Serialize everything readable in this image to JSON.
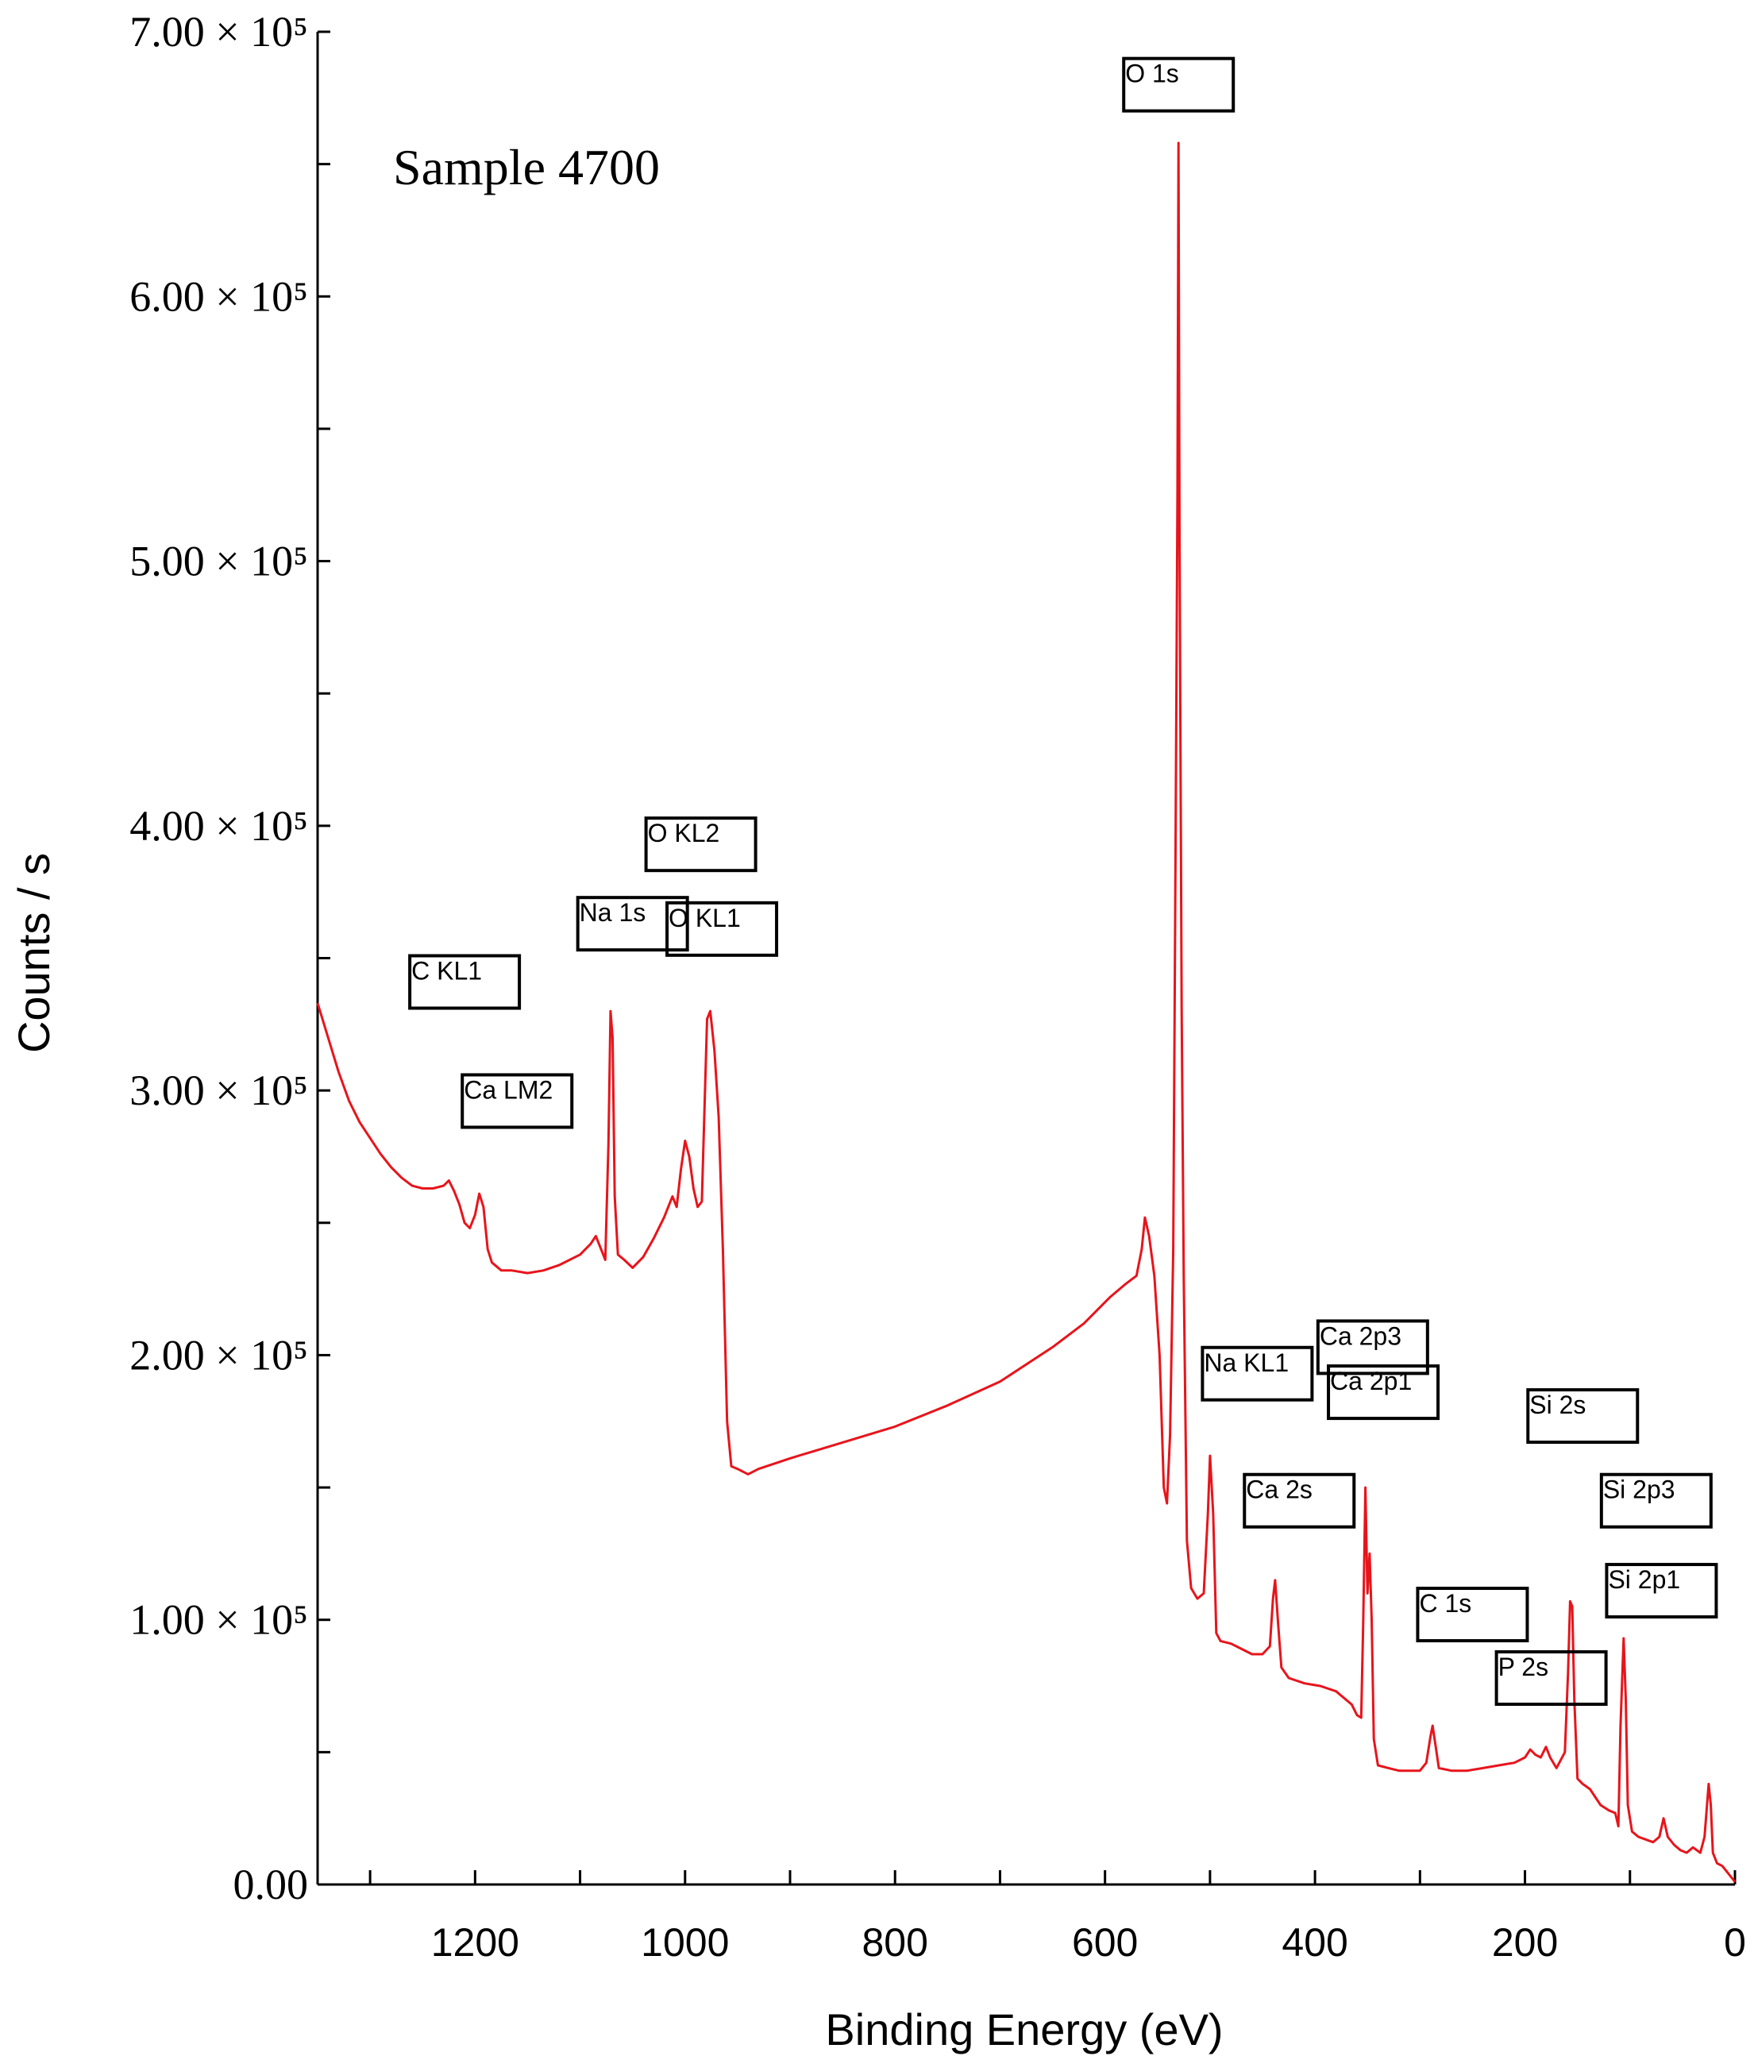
{
  "chart_data": {
    "type": "line",
    "sample_label": "Sample 4700",
    "xlabel": "Binding Energy (eV)",
    "ylabel": "Counts / s",
    "xlim": [
      1350,
      0
    ],
    "ylim": [
      0,
      700000
    ],
    "x_reversed": true,
    "x_ticks": [
      {
        "value": 1200,
        "label": "1200"
      },
      {
        "value": 1000,
        "label": "1000"
      },
      {
        "value": 800,
        "label": "800"
      },
      {
        "value": 600,
        "label": "600"
      },
      {
        "value": 400,
        "label": "400"
      },
      {
        "value": 200,
        "label": "200"
      },
      {
        "value": 0,
        "label": "0"
      }
    ],
    "x_minor_ticks": [
      1300,
      1100,
      900,
      700,
      500,
      300,
      100
    ],
    "y_ticks": [
      {
        "value": 0,
        "label": "0.00"
      },
      {
        "value": 100000,
        "label": "1.00 × 10⁵"
      },
      {
        "value": 200000,
        "label": "2.00 × 10⁵"
      },
      {
        "value": 300000,
        "label": "3.00 × 10⁵"
      },
      {
        "value": 400000,
        "label": "4.00 × 10⁵"
      },
      {
        "value": 500000,
        "label": "5.00 × 10⁵"
      },
      {
        "value": 600000,
        "label": "6.00 × 10⁵"
      },
      {
        "value": 700000,
        "label": "7.00 × 10⁵"
      }
    ],
    "y_minor_ticks": [
      50000,
      150000,
      250000,
      350000,
      450000,
      550000,
      650000
    ],
    "color": "#e8141b",
    "peak_labels": [
      {
        "label": "O 1s",
        "x": 530,
        "y": 680000
      },
      {
        "label": "O KL2",
        "x": 985,
        "y": 393000
      },
      {
        "label": "Na 1s",
        "x": 1050,
        "y": 363000
      },
      {
        "label": "O KL1",
        "x": 965,
        "y": 361000
      },
      {
        "label": "C KL1",
        "x": 1210,
        "y": 341000
      },
      {
        "label": "Ca LM2",
        "x": 1160,
        "y": 296000
      },
      {
        "label": "Ca 2p3",
        "x": 345,
        "y": 203000
      },
      {
        "label": "Na KL1",
        "x": 455,
        "y": 193000
      },
      {
        "label": "Ca 2p1",
        "x": 335,
        "y": 186000
      },
      {
        "label": "Si 2s",
        "x": 145,
        "y": 177000
      },
      {
        "label": "Ca 2s",
        "x": 415,
        "y": 145000
      },
      {
        "label": "Si 2p3",
        "x": 75,
        "y": 145000
      },
      {
        "label": "Si 2p1",
        "x": 70,
        "y": 111000
      },
      {
        "label": "C 1s",
        "x": 250,
        "y": 102000
      },
      {
        "label": "P 2s",
        "x": 175,
        "y": 78000
      }
    ],
    "series": [
      {
        "points": [
          [
            1350,
            333000
          ],
          [
            1340,
            320000
          ],
          [
            1330,
            307000
          ],
          [
            1320,
            296000
          ],
          [
            1310,
            288000
          ],
          [
            1300,
            282000
          ],
          [
            1290,
            276000
          ],
          [
            1280,
            271000
          ],
          [
            1270,
            267000
          ],
          [
            1260,
            264000
          ],
          [
            1250,
            263000
          ],
          [
            1240,
            263000
          ],
          [
            1230,
            264000
          ],
          [
            1225,
            266000
          ],
          [
            1220,
            262000
          ],
          [
            1215,
            257000
          ],
          [
            1210,
            250000
          ],
          [
            1205,
            248000
          ],
          [
            1200,
            253000
          ],
          [
            1196,
            261000
          ],
          [
            1192,
            256000
          ],
          [
            1188,
            240000
          ],
          [
            1184,
            235000
          ],
          [
            1175,
            232000
          ],
          [
            1165,
            232000
          ],
          [
            1150,
            231000
          ],
          [
            1135,
            232000
          ],
          [
            1120,
            234000
          ],
          [
            1100,
            238000
          ],
          [
            1090,
            242000
          ],
          [
            1085,
            245000
          ],
          [
            1080,
            240000
          ],
          [
            1076,
            236000
          ],
          [
            1073,
            280000
          ],
          [
            1071,
            330000
          ],
          [
            1069,
            320000
          ],
          [
            1067,
            260000
          ],
          [
            1064,
            238000
          ],
          [
            1058,
            236000
          ],
          [
            1050,
            233000
          ],
          [
            1040,
            237000
          ],
          [
            1030,
            244000
          ],
          [
            1020,
            252000
          ],
          [
            1012,
            260000
          ],
          [
            1008,
            256000
          ],
          [
            1004,
            270000
          ],
          [
            1000,
            281000
          ],
          [
            996,
            275000
          ],
          [
            992,
            263000
          ],
          [
            988,
            256000
          ],
          [
            984,
            258000
          ],
          [
            981,
            300000
          ],
          [
            979,
            327000
          ],
          [
            976,
            330000
          ],
          [
            972,
            315000
          ],
          [
            968,
            290000
          ],
          [
            964,
            240000
          ],
          [
            960,
            175000
          ],
          [
            956,
            158000
          ],
          [
            950,
            157000
          ],
          [
            940,
            155000
          ],
          [
            930,
            157000
          ],
          [
            900,
            161000
          ],
          [
            850,
            167000
          ],
          [
            800,
            173000
          ],
          [
            750,
            181000
          ],
          [
            700,
            190000
          ],
          [
            650,
            203000
          ],
          [
            620,
            212000
          ],
          [
            595,
            222000
          ],
          [
            580,
            227000
          ],
          [
            570,
            230000
          ],
          [
            565,
            240000
          ],
          [
            562,
            252000
          ],
          [
            558,
            245000
          ],
          [
            553,
            230000
          ],
          [
            548,
            200000
          ],
          [
            544,
            150000
          ],
          [
            541,
            144000
          ],
          [
            538,
            170000
          ],
          [
            535,
            240000
          ],
          [
            533,
            380000
          ],
          [
            531,
            525000
          ],
          [
            530,
            658000
          ],
          [
            529,
            510000
          ],
          [
            527,
            330000
          ],
          [
            525,
            230000
          ],
          [
            522,
            130000
          ],
          [
            518,
            112000
          ],
          [
            512,
            108000
          ],
          [
            506,
            110000
          ],
          [
            502,
            140000
          ],
          [
            500,
            162000
          ],
          [
            497,
            140000
          ],
          [
            494,
            95000
          ],
          [
            490,
            92000
          ],
          [
            480,
            91000
          ],
          [
            470,
            89000
          ],
          [
            460,
            87000
          ],
          [
            450,
            87000
          ],
          [
            443,
            90000
          ],
          [
            440,
            108000
          ],
          [
            438,
            115000
          ],
          [
            435,
            98000
          ],
          [
            432,
            82000
          ],
          [
            425,
            78000
          ],
          [
            410,
            76000
          ],
          [
            395,
            75000
          ],
          [
            380,
            73000
          ],
          [
            365,
            68000
          ],
          [
            360,
            64000
          ],
          [
            356,
            63000
          ],
          [
            354,
            100000
          ],
          [
            352,
            150000
          ],
          [
            350,
            110000
          ],
          [
            348,
            125000
          ],
          [
            346,
            100000
          ],
          [
            344,
            55000
          ],
          [
            340,
            45000
          ],
          [
            330,
            44000
          ],
          [
            320,
            43000
          ],
          [
            310,
            43000
          ],
          [
            300,
            43000
          ],
          [
            294,
            46000
          ],
          [
            290,
            56000
          ],
          [
            288,
            60000
          ],
          [
            285,
            52000
          ],
          [
            282,
            44000
          ],
          [
            270,
            43000
          ],
          [
            255,
            43000
          ],
          [
            240,
            44000
          ],
          [
            225,
            45000
          ],
          [
            210,
            46000
          ],
          [
            200,
            48000
          ],
          [
            195,
            51000
          ],
          [
            190,
            49000
          ],
          [
            185,
            48000
          ],
          [
            180,
            52000
          ],
          [
            176,
            48000
          ],
          [
            170,
            44000
          ],
          [
            162,
            50000
          ],
          [
            159,
            80000
          ],
          [
            157,
            107000
          ],
          [
            155,
            105000
          ],
          [
            153,
            70000
          ],
          [
            150,
            40000
          ],
          [
            145,
            38000
          ],
          [
            138,
            36000
          ],
          [
            128,
            30000
          ],
          [
            120,
            28000
          ],
          [
            114,
            27000
          ],
          [
            111,
            22000
          ],
          [
            109,
            60000
          ],
          [
            106,
            93000
          ],
          [
            104,
            70000
          ],
          [
            102,
            30000
          ],
          [
            98,
            20000
          ],
          [
            92,
            18000
          ],
          [
            85,
            17000
          ],
          [
            78,
            16000
          ],
          [
            72,
            18000
          ],
          [
            68,
            25000
          ],
          [
            64,
            18000
          ],
          [
            58,
            15000
          ],
          [
            52,
            13000
          ],
          [
            46,
            12000
          ],
          [
            40,
            14000
          ],
          [
            33,
            12000
          ],
          [
            29,
            18000
          ],
          [
            25,
            38000
          ],
          [
            23,
            30000
          ],
          [
            21,
            12000
          ],
          [
            17,
            8000
          ],
          [
            12,
            7000
          ],
          [
            8,
            5000
          ],
          [
            4,
            3000
          ],
          [
            0,
            1000
          ]
        ]
      }
    ]
  }
}
